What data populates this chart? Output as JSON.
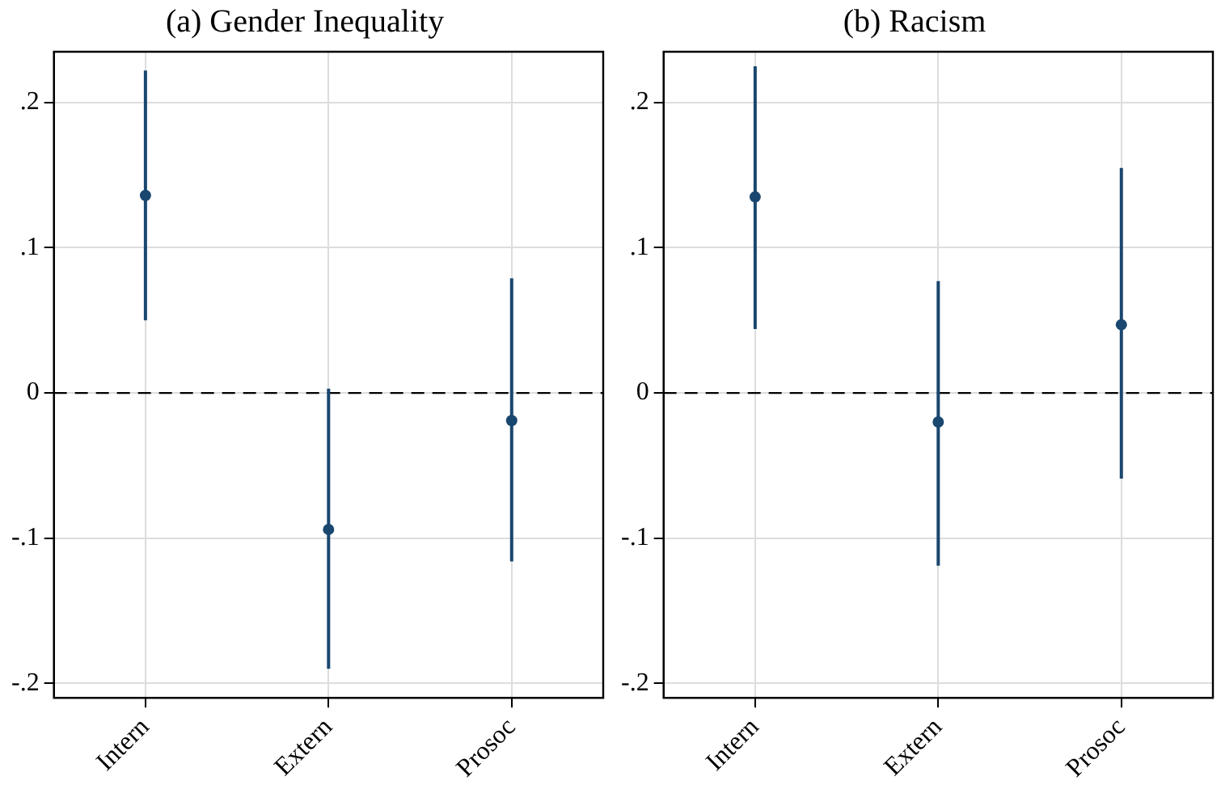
{
  "chart_data": [
    {
      "type": "scatter",
      "title": "(a) Gender Inequality",
      "categories": [
        "Intern",
        "Extern",
        "Prosoc"
      ],
      "values": [
        0.136,
        -0.094,
        -0.019
      ],
      "errors": [
        [
          0.05,
          0.222
        ],
        [
          -0.19,
          0.003
        ],
        [
          -0.116,
          0.079
        ]
      ],
      "color": "#1a476f",
      "marker": "circle",
      "ylim": [
        -0.21,
        0.235
      ],
      "yticks": [
        {
          "value": -0.2,
          "label": "-.2"
        },
        {
          "value": -0.1,
          "label": "-.1"
        },
        0,
        {
          "value": 0.1,
          "label": ".1"
        },
        {
          "value": 0.2,
          "label": ".2"
        }
      ],
      "grid": true,
      "ref_lines": [
        {
          "axis": "y",
          "value": 0,
          "color": "#000000",
          "line_style": "dashed"
        }
      ]
    },
    {
      "type": "scatter",
      "title": "(b) Racism",
      "categories": [
        "Intern",
        "Extern",
        "Prosoc"
      ],
      "values": [
        0.135,
        -0.02,
        0.047
      ],
      "errors": [
        [
          0.044,
          0.225
        ],
        [
          -0.119,
          0.077
        ],
        [
          -0.059,
          0.155
        ]
      ],
      "color": "#1a476f",
      "marker": "circle",
      "ylim": [
        -0.21,
        0.235
      ],
      "yticks": [
        {
          "value": -0.2,
          "label": "-.2"
        },
        {
          "value": -0.1,
          "label": "-.1"
        },
        0,
        {
          "value": 0.1,
          "label": ".1"
        },
        {
          "value": 0.2,
          "label": ".2"
        }
      ],
      "grid": true,
      "ref_lines": [
        {
          "axis": "y",
          "value": 0,
          "color": "#000000",
          "line_style": "dashed"
        }
      ]
    }
  ]
}
